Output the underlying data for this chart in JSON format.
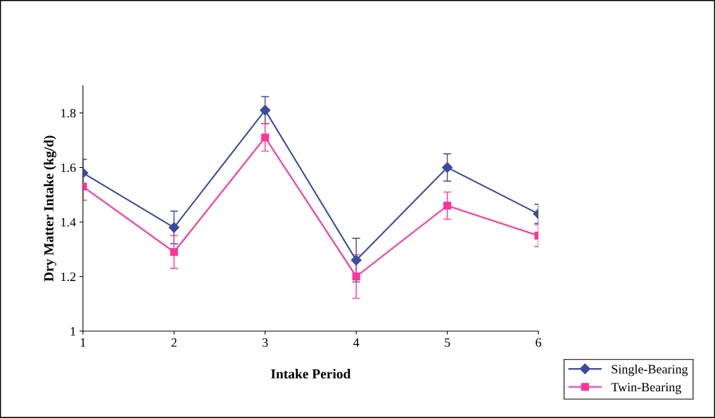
{
  "chart_data": {
    "type": "line",
    "xlabel": "Intake Period",
    "ylabel": "Dry Matter Intake (kg/d)",
    "x": [
      1,
      2,
      3,
      4,
      5,
      6
    ],
    "xlim": [
      1,
      6
    ],
    "xticks": [
      1,
      2,
      3,
      4,
      5,
      6
    ],
    "ylim": [
      1,
      1.9
    ],
    "yticks": [
      1,
      1.2,
      1.4,
      1.6,
      1.8
    ],
    "grid": false,
    "legend": "bottom right",
    "line_style": "solid",
    "series": [
      {
        "name": "Single-Bearing",
        "color": "#3d4a9e",
        "marker": "diamond",
        "values": [
          1.58,
          1.38,
          1.81,
          1.26,
          1.6,
          1.43
        ],
        "errors": [
          0.05,
          0.06,
          0.05,
          0.08,
          0.05,
          0.035
        ]
      },
      {
        "name": "Twin-Bearing",
        "color": "#ff3399",
        "marker": "square",
        "values": [
          1.53,
          1.29,
          1.71,
          1.2,
          1.46,
          1.35
        ],
        "errors": [
          0.05,
          0.06,
          0.05,
          0.08,
          0.05,
          0.04
        ]
      }
    ]
  }
}
